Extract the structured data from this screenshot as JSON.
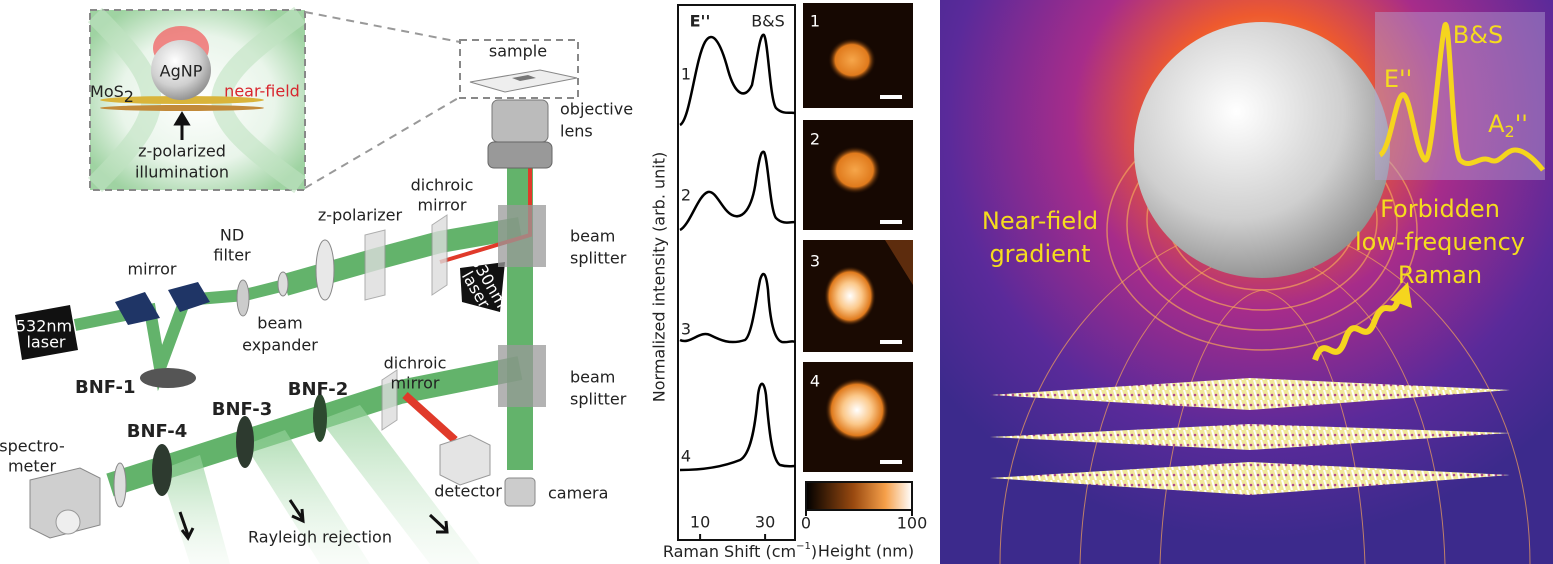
{
  "setup": {
    "inset": {
      "particle": "AgNP",
      "substrate": {
        "text": "MoS",
        "sub": "2"
      },
      "field": "near-field",
      "illumination": [
        "z-polarized",
        "illumination"
      ]
    },
    "labels": {
      "sample": "sample",
      "objective": [
        "objective",
        "lens"
      ],
      "dichroic_top": [
        "dichroic",
        "mirror"
      ],
      "z_polarizer": "z-polarizer",
      "nd_filter": [
        "ND",
        "filter"
      ],
      "mirror": "mirror",
      "laser_532": [
        "532nm",
        "laser"
      ],
      "laser_830": [
        "830nm",
        "laser"
      ],
      "splitter_top": [
        "beam",
        "splitter"
      ],
      "expander": [
        "beam",
        "expander"
      ],
      "bnf1": "BNF-1",
      "bnf2": "BNF-2",
      "bnf3": "BNF-3",
      "bnf4": "BNF-4",
      "dichroic_bottom": [
        "dichroic",
        "mirror"
      ],
      "splitter_bottom": [
        "beam",
        "splitter"
      ],
      "spectrometer": [
        "spectro-",
        "meter"
      ],
      "detector": "detector",
      "camera": "camera",
      "rejection": "Rayleigh rejection"
    }
  },
  "spectra": {
    "peaks": [
      "E''",
      "B&S"
    ],
    "traces": [
      "1",
      "2",
      "3",
      "4"
    ],
    "y_label": "Normalized intensity (arb. unit)",
    "x_label": {
      "text": "Raman Shift (cm",
      "sup": "−1",
      "close": ")"
    },
    "xlim": [
      3.2,
      39.2
    ],
    "xticks": [
      10,
      30
    ]
  },
  "maps": {
    "panels": [
      "1",
      "2",
      "3",
      "4"
    ],
    "colorbar": {
      "label": "Height (nm)",
      "lim": [
        0,
        100
      ],
      "ticks": [
        0,
        100
      ]
    }
  },
  "illustration": {
    "left": [
      "Near-field",
      "gradient"
    ],
    "right": [
      "Forbidden",
      "low-frequency",
      "Raman"
    ],
    "inset": {
      "peak1": "E''",
      "peak2": "B&S",
      "peak3": {
        "text": "A",
        "sub": "2",
        "prime": "''"
      }
    }
  }
}
